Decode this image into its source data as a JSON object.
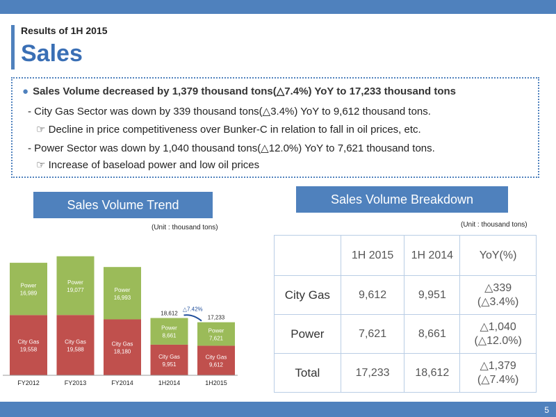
{
  "header": {
    "subtitle": "Results of 1H 2015",
    "title": "Sales"
  },
  "summary": {
    "main": "Sales Volume decreased by 1,379 thousand tons(△7.4%) YoY  to 17,233 thousand tons",
    "line1": "- City Gas Sector was down by 339 thousand tons(△3.4%) YoY to 9,612 thousand tons.",
    "line2": "☞ Decline in price competitiveness over Bunker-C in relation to fall in oil prices, etc.",
    "line3": "- Power Sector was down by 1,040 thousand tons(△12.0%) YoY to 7,621 thousand tons.",
    "line4": "☞ Increase of baseload power and low oil prices"
  },
  "trend_section": {
    "title": "Sales Volume Trend",
    "unit": "(Unit : thousand tons)"
  },
  "breakdown_section": {
    "title": "Sales Volume Breakdown",
    "unit": "(Unit : thousand tons)"
  },
  "chart_data": {
    "type": "bar",
    "stacked": true,
    "categories": [
      "FY2012",
      "FY2013",
      "FY2014",
      "1H2014",
      "1H2015"
    ],
    "series": [
      {
        "name": "City Gas",
        "values": [
          19558,
          19588,
          18180,
          9951,
          9612
        ],
        "color": "#c0504d",
        "labels": [
          "19,558",
          "19,588",
          "18,180",
          "9,951",
          "9,612"
        ]
      },
      {
        "name": "Power",
        "values": [
          16989,
          19077,
          16993,
          8661,
          7621
        ],
        "color": "#9bbb59",
        "labels": [
          "16,989",
          "19,077",
          "16,993",
          "8,661",
          "7,621"
        ]
      }
    ],
    "totals": [
      "",
      "",
      "",
      "18,612",
      "17,233"
    ],
    "annotation": "△7.42%"
  },
  "table": {
    "headers": [
      "",
      "1H 2015",
      "1H 2014",
      "YoY(%)"
    ],
    "rows": [
      {
        "label": "City Gas",
        "v2015": "9,612",
        "v2014": "9,951",
        "yoy1": "△339",
        "yoy2": "(△3.4%)"
      },
      {
        "label": "Power",
        "v2015": "7,621",
        "v2014": "8,661",
        "yoy1": "△1,040",
        "yoy2": "(△12.0%)"
      },
      {
        "label": "Total",
        "v2015": "17,233",
        "v2014": "18,612",
        "yoy1": "△1,379",
        "yoy2": "(△7.4%)"
      }
    ]
  },
  "footer": {
    "page": "5"
  }
}
